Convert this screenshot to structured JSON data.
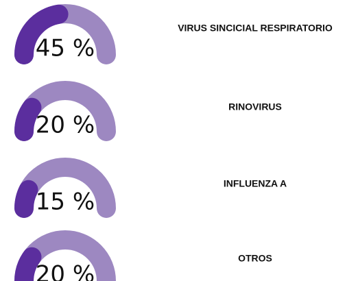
{
  "chart_data": [
    {
      "type": "gauge",
      "title": "VIRUS SINCICIAL RESPIRATORIO",
      "values": [
        45
      ],
      "value_labels": [
        "45 %"
      ],
      "ylim": [
        0,
        100
      ],
      "color": "#5b2e9e",
      "track_color": "#9d88c1"
    },
    {
      "type": "gauge",
      "title": "RINOVIRUS",
      "values": [
        20
      ],
      "value_labels": [
        "20 %"
      ],
      "ylim": [
        0,
        100
      ],
      "color": "#5b2e9e",
      "track_color": "#9d88c1"
    },
    {
      "type": "gauge",
      "title": "INFLUENZA A",
      "values": [
        15
      ],
      "value_labels": [
        "15 %"
      ],
      "ylim": [
        0,
        100
      ],
      "color": "#5b2e9e",
      "track_color": "#9d88c1"
    },
    {
      "type": "gauge",
      "title": "OTROS",
      "values": [
        20
      ],
      "value_labels": [
        "20 %"
      ],
      "ylim": [
        0,
        100
      ],
      "color": "#5b2e9e",
      "track_color": "#9d88c1"
    }
  ]
}
